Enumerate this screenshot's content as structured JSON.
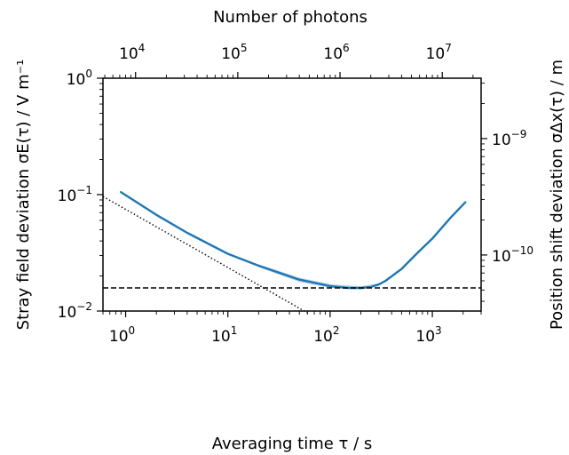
{
  "chart_data": {
    "type": "line",
    "xlabel": "Averaging time τ / s",
    "x2label": "Number of photons",
    "ylabel": "Stray field deviation σE(τ) / V m⁻¹",
    "y2label": "Position shift deviation σΔx(τ) / m",
    "x_scale": "log",
    "y_scale": "log",
    "xlim": [
      0.6,
      3000
    ],
    "ylim": [
      0.01,
      1
    ],
    "y2lim": [
      3.3e-11,
      3.3e-09
    ],
    "x2lim": [
      4800,
      24000000
    ],
    "x_ticks": [
      {
        "value": 1,
        "exp": "0"
      },
      {
        "value": 10,
        "exp": "1"
      },
      {
        "value": 100,
        "exp": "2"
      },
      {
        "value": 1000,
        "exp": "3"
      }
    ],
    "y_ticks": [
      {
        "value": 0.01,
        "exp": "−2"
      },
      {
        "value": 0.1,
        "exp": "−1"
      },
      {
        "value": 1,
        "exp": "0"
      }
    ],
    "x2_ticks": [
      {
        "value": 10000,
        "exp": "4"
      },
      {
        "value": 100000,
        "exp": "5"
      },
      {
        "value": 1000000,
        "exp": "6"
      },
      {
        "value": 10000000,
        "exp": "7"
      }
    ],
    "y2_ticks": [
      {
        "value": 1e-10,
        "exp": "−10"
      },
      {
        "value": 1e-09,
        "exp": "−9"
      }
    ],
    "tick_base": "10",
    "series": [
      {
        "style": "solid",
        "color": "#1f77b4",
        "x": [
          0.9,
          2,
          4,
          10,
          20,
          50,
          100,
          150,
          200,
          250,
          300,
          350,
          500,
          700,
          1000,
          1500,
          2100
        ],
        "y": [
          0.105,
          0.067,
          0.047,
          0.031,
          0.0245,
          0.0186,
          0.0164,
          0.0158,
          0.0158,
          0.0161,
          0.0169,
          0.0182,
          0.023,
          0.031,
          0.042,
          0.063,
          0.086
        ]
      },
      {
        "style": "dotted",
        "color": "#000000",
        "x": [
          0.6,
          60
        ],
        "y": [
          0.0965,
          0.00965
        ]
      },
      {
        "style": "dashed",
        "color": "#000000",
        "x": [
          0.6,
          3000
        ],
        "y": [
          0.0158,
          0.0158
        ]
      }
    ],
    "band": {
      "color": "#1f77b4",
      "opacity": 0.3,
      "x": [
        20,
        50,
        100,
        200,
        300
      ],
      "y_low": [
        0.0238,
        0.0178,
        0.0158,
        0.0153,
        0.0164
      ],
      "y_high": [
        0.0252,
        0.0194,
        0.017,
        0.0163,
        0.0174
      ]
    },
    "grid": false,
    "legend": false
  }
}
